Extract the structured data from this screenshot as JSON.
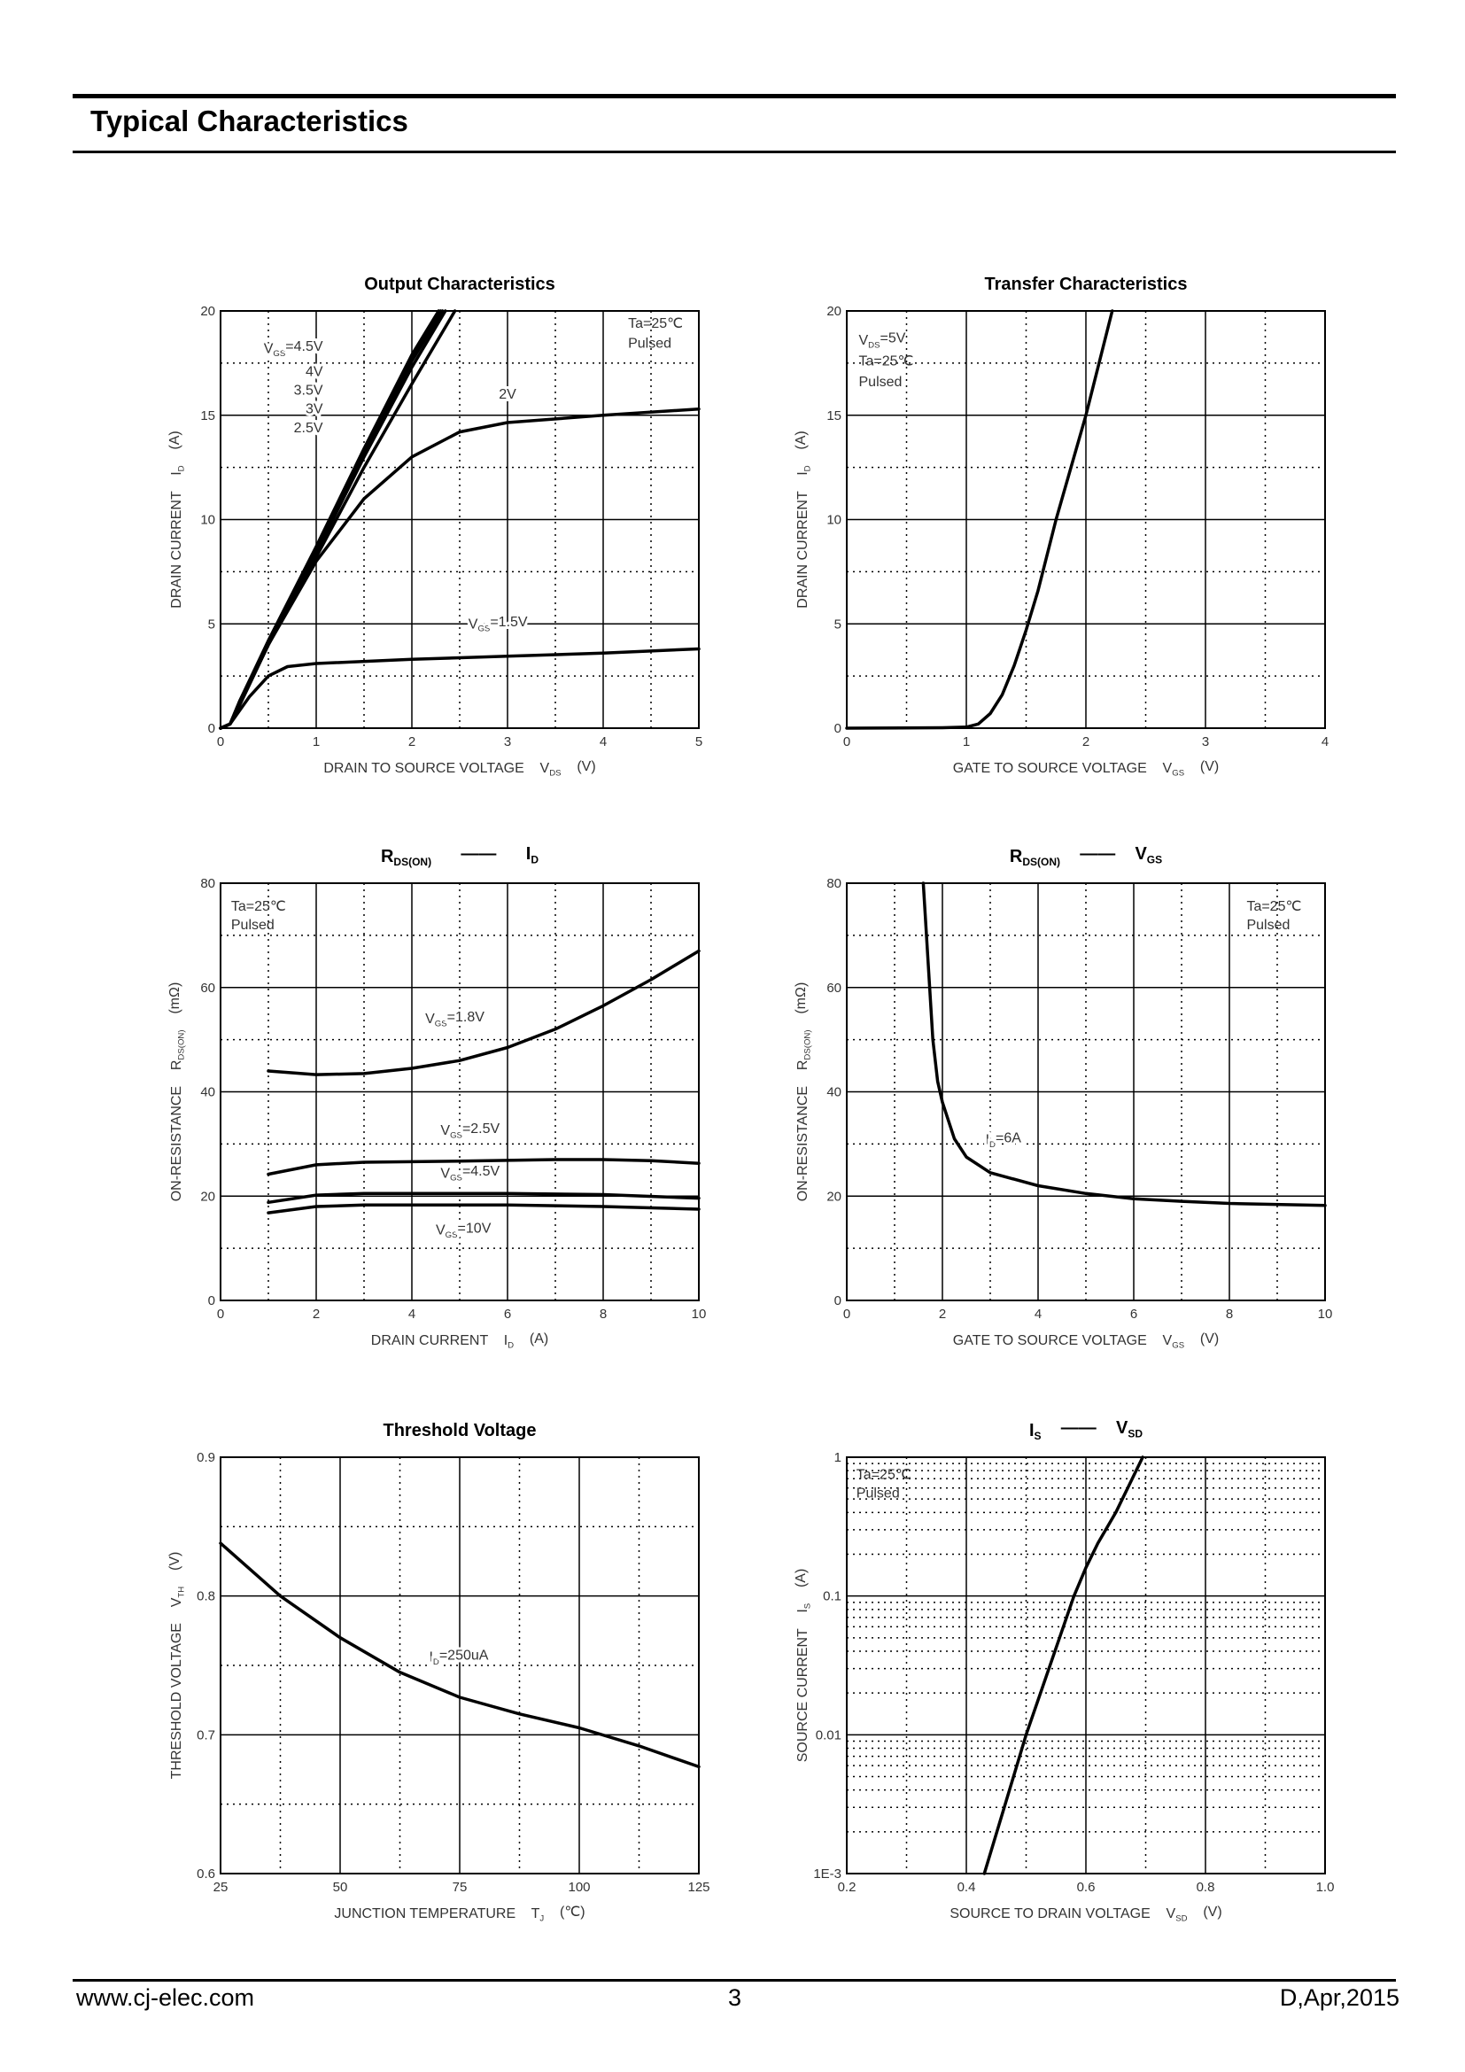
{
  "header": {
    "title": "Typical Characteristics"
  },
  "footer": {
    "website": "www.cj-elec.com",
    "page": "3",
    "revision": "D,Apr,2015"
  },
  "chart_data": [
    {
      "type": "line",
      "title": [
        {
          "t": "Output Characteristics"
        }
      ],
      "xlabel": [
        {
          "t": "DRAIN TO SOURCE VOLTAGE    V",
          "sub": "DS"
        },
        {
          "t": "    (V)"
        }
      ],
      "ylabel": [
        {
          "t": "DRAIN CURRENT    I",
          "sub": "D"
        },
        {
          "t": "    (A)"
        }
      ],
      "xlim": [
        0,
        5
      ],
      "ylim": [
        0,
        20
      ],
      "ylog": false,
      "xticks": [
        0,
        1,
        2,
        3,
        4,
        5
      ],
      "xtick_labels": [
        "0",
        "1",
        "2",
        "3",
        "4",
        "5"
      ],
      "xminor": [
        0.5,
        1.5,
        2.5,
        3.5,
        4.5
      ],
      "yticks": [
        0,
        5,
        10,
        15,
        20
      ],
      "ytick_labels": [
        "0",
        "5",
        "10",
        "15",
        "20"
      ],
      "yminor": [
        2.5,
        7.5,
        12.5,
        17.5
      ],
      "grid": true,
      "notes": [
        "Ta=25℃",
        "Pulsed"
      ],
      "annotations": [
        [
          {
            "t": "V",
            "sub": "GS"
          },
          {
            "t": "=4.5V"
          }
        ],
        [
          {
            "t": "4V"
          }
        ],
        [
          {
            "t": "3.5V"
          }
        ],
        [
          {
            "t": "3V"
          }
        ],
        [
          {
            "t": "2.5V"
          }
        ],
        [
          {
            "t": "2V"
          }
        ],
        [
          {
            "t": "V",
            "sub": "GS"
          },
          {
            "t": "=1.5V"
          }
        ]
      ],
      "series": [
        {
          "label": "VGS=4.5V",
          "x": [
            0,
            0.1,
            0.2,
            0.5,
            1,
            1.5,
            2,
            2.28
          ],
          "y": [
            0,
            0.2,
            1.3,
            4.2,
            8.7,
            13.4,
            17.9,
            20
          ]
        },
        {
          "label": "VGS=4V",
          "x": [
            0,
            0.1,
            0.2,
            0.5,
            1,
            1.5,
            2,
            2.3
          ],
          "y": [
            0,
            0.2,
            1.3,
            4.1,
            8.6,
            13.3,
            17.8,
            20
          ]
        },
        {
          "label": "VGS=3.5V",
          "x": [
            0,
            0.1,
            0.2,
            0.5,
            1,
            1.5,
            2,
            2.32
          ],
          "y": [
            0,
            0.2,
            1.2,
            4.1,
            8.5,
            13.2,
            17.6,
            20
          ]
        },
        {
          "label": "VGS=3V",
          "x": [
            0,
            0.1,
            0.2,
            0.5,
            1,
            1.5,
            2,
            2.35
          ],
          "y": [
            0,
            0.2,
            1.2,
            4.0,
            8.4,
            13.0,
            17.3,
            20
          ]
        },
        {
          "label": "VGS=2.5V",
          "x": [
            0,
            0.1,
            0.2,
            0.5,
            1,
            1.5,
            2,
            2.45
          ],
          "y": [
            0,
            0.2,
            1.2,
            4.0,
            8.2,
            12.5,
            16.5,
            20
          ]
        },
        {
          "label": "VGS=2V",
          "x": [
            0,
            0.1,
            0.2,
            0.5,
            1,
            1.5,
            2,
            2.5,
            3,
            4,
            5
          ],
          "y": [
            0,
            0.2,
            1.1,
            4.0,
            8.0,
            11.0,
            13.0,
            14.2,
            14.65,
            15.0,
            15.3
          ]
        },
        {
          "label": "VGS=1.5V",
          "x": [
            0,
            0.1,
            0.3,
            0.5,
            0.7,
            1,
            2,
            3,
            4,
            5
          ],
          "y": [
            0,
            0.2,
            1.5,
            2.5,
            2.95,
            3.1,
            3.3,
            3.45,
            3.6,
            3.8
          ]
        }
      ]
    },
    {
      "type": "line",
      "title": [
        {
          "t": "Transfer Characteristics"
        }
      ],
      "xlabel": [
        {
          "t": "GATE TO SOURCE VOLTAGE    V",
          "sub": "GS"
        },
        {
          "t": "    (V)"
        }
      ],
      "ylabel": [
        {
          "t": "DRAIN CURRENT    I",
          "sub": "D"
        },
        {
          "t": "    (A)"
        }
      ],
      "xlim": [
        0,
        4
      ],
      "ylim": [
        0,
        20
      ],
      "ylog": false,
      "xticks": [
        0,
        1,
        2,
        3,
        4
      ],
      "xtick_labels": [
        "0",
        "1",
        "2",
        "3",
        "4"
      ],
      "xminor": [
        0.5,
        1.5,
        2.5,
        3.5
      ],
      "yticks": [
        0,
        5,
        10,
        15,
        20
      ],
      "ytick_labels": [
        "0",
        "5",
        "10",
        "15",
        "20"
      ],
      "yminor": [
        2.5,
        7.5,
        12.5,
        17.5
      ],
      "grid": true,
      "notes": [
        [
          {
            "t": "V",
            "sub": "DS"
          },
          {
            "t": "=5V"
          }
        ],
        "Ta=25℃",
        "Pulsed"
      ],
      "annotations": [],
      "series": [
        {
          "label": "VDS=5V",
          "x": [
            0,
            0.8,
            1.0,
            1.1,
            1.2,
            1.3,
            1.4,
            1.5,
            1.6,
            1.75,
            2.0,
            2.22
          ],
          "y": [
            0,
            0.02,
            0.05,
            0.2,
            0.7,
            1.6,
            3.0,
            4.7,
            6.6,
            10.0,
            15.0,
            20.0
          ]
        }
      ]
    },
    {
      "type": "line",
      "title": [
        {
          "t": "R",
          "sub": "DS(ON)"
        },
        {
          "t": "      ——      "
        },
        {
          "t": "I",
          "sub": "D"
        }
      ],
      "xlabel": [
        {
          "t": "DRAIN CURRENT    I",
          "sub": "D"
        },
        {
          "t": "    (A)"
        }
      ],
      "ylabel": [
        {
          "t": "ON-RESISTANCE    R",
          "sub": "DS(ON)"
        },
        {
          "t": "    (mΩ)"
        }
      ],
      "xlim": [
        0,
        10
      ],
      "ylim": [
        0,
        80
      ],
      "ylog": false,
      "xticks": [
        0,
        2,
        4,
        6,
        8,
        10
      ],
      "xtick_labels": [
        "0",
        "2",
        "4",
        "6",
        "8",
        "10"
      ],
      "xminor": [
        1,
        3,
        5,
        7,
        9
      ],
      "yticks": [
        0,
        20,
        40,
        60,
        80
      ],
      "ytick_labels": [
        "0",
        "20",
        "40",
        "60",
        "80"
      ],
      "yminor": [
        10,
        30,
        50,
        70
      ],
      "grid": true,
      "notes": [
        "Ta=25℃",
        "Pulsed"
      ],
      "annotations": [
        [
          {
            "t": "V",
            "sub": "GS"
          },
          {
            "t": "=1.8V"
          }
        ],
        [
          {
            "t": "V",
            "sub": "GS"
          },
          {
            "t": "=2.5V"
          }
        ],
        [
          {
            "t": "V",
            "sub": "GS"
          },
          {
            "t": "=4.5V"
          }
        ],
        [
          {
            "t": "V",
            "sub": "GS"
          },
          {
            "t": "=10V"
          }
        ]
      ],
      "series": [
        {
          "label": "VGS=1.8V",
          "x": [
            1,
            2,
            3,
            4,
            5,
            6,
            7,
            8,
            9,
            10
          ],
          "y": [
            44,
            43.3,
            43.5,
            44.5,
            46,
            48.5,
            52,
            56.5,
            61.5,
            67
          ]
        },
        {
          "label": "VGS=2.5V",
          "x": [
            1,
            2,
            3,
            5,
            7,
            8,
            9,
            10
          ],
          "y": [
            24.2,
            26,
            26.5,
            26.7,
            27,
            27,
            26.8,
            26.3
          ]
        },
        {
          "label": "VGS=4.5V",
          "x": [
            1,
            2,
            3,
            6,
            8,
            10
          ],
          "y": [
            18.8,
            20.2,
            20.5,
            20.5,
            20.3,
            19.6
          ]
        },
        {
          "label": "VGS=10V",
          "x": [
            1,
            2,
            3,
            6,
            8,
            10
          ],
          "y": [
            16.8,
            18,
            18.3,
            18.3,
            18,
            17.5
          ]
        }
      ]
    },
    {
      "type": "line",
      "title": [
        {
          "t": "R",
          "sub": "DS(ON)"
        },
        {
          "t": "    ——    "
        },
        {
          "t": "V",
          "sub": "GS"
        }
      ],
      "xlabel": [
        {
          "t": "GATE TO SOURCE VOLTAGE    V",
          "sub": "GS"
        },
        {
          "t": "    (V)"
        }
      ],
      "ylabel": [
        {
          "t": "ON-RESISTANCE    R",
          "sub": "DS(ON)"
        },
        {
          "t": "    (mΩ)"
        }
      ],
      "xlim": [
        0,
        10
      ],
      "ylim": [
        0,
        80
      ],
      "ylog": false,
      "xticks": [
        0,
        2,
        4,
        6,
        8,
        10
      ],
      "xtick_labels": [
        "0",
        "2",
        "4",
        "6",
        "8",
        "10"
      ],
      "xminor": [
        1,
        3,
        5,
        7,
        9
      ],
      "yticks": [
        0,
        20,
        40,
        60,
        80
      ],
      "ytick_labels": [
        "0",
        "20",
        "40",
        "60",
        "80"
      ],
      "yminor": [
        10,
        30,
        50,
        70
      ],
      "grid": true,
      "notes": [
        "Ta=25℃",
        "Pulsed"
      ],
      "annotations": [
        [
          {
            "t": "I",
            "sub": "D"
          },
          {
            "t": "=6A"
          }
        ]
      ],
      "series": [
        {
          "label": "ID=6A",
          "x": [
            1.6,
            1.7,
            1.8,
            1.9,
            2.0,
            2.25,
            2.5,
            3,
            4,
            5,
            6,
            7,
            8,
            10
          ],
          "y": [
            80,
            65,
            50,
            42,
            38,
            31,
            27.5,
            24.5,
            22,
            20.5,
            19.5,
            19,
            18.6,
            18.2
          ]
        }
      ]
    },
    {
      "type": "line",
      "title": [
        {
          "t": "Threshold Voltage"
        }
      ],
      "xlabel": [
        {
          "t": "JUNCTION TEMPERATURE    T",
          "sub": "J"
        },
        {
          "t": "    (℃)"
        }
      ],
      "ylabel": [
        {
          "t": "THRESHOLD VOLTAGE    V",
          "sub": "TH"
        },
        {
          "t": "    (V)"
        }
      ],
      "xlim": [
        25,
        125
      ],
      "ylim": [
        0.6,
        0.9
      ],
      "ylog": false,
      "xticks": [
        25,
        50,
        75,
        100,
        125
      ],
      "xtick_labels": [
        "25",
        "50",
        "75",
        "100",
        "125"
      ],
      "xminor": [
        37.5,
        62.5,
        87.5,
        112.5
      ],
      "yticks": [
        0.6,
        0.7,
        0.8,
        0.9
      ],
      "ytick_labels": [
        "0.6",
        "0.7",
        "0.8",
        "0.9"
      ],
      "yminor": [
        0.65,
        0.75,
        0.85
      ],
      "grid": true,
      "notes": [],
      "annotations": [
        [
          {
            "t": "I",
            "sub": "D"
          },
          {
            "t": "=250uA"
          }
        ]
      ],
      "series": [
        {
          "label": "ID=250uA",
          "x": [
            25,
            37.5,
            50,
            62.5,
            75,
            87.5,
            100,
            112.5,
            125
          ],
          "y": [
            0.838,
            0.8,
            0.77,
            0.745,
            0.727,
            0.715,
            0.705,
            0.692,
            0.677
          ]
        }
      ]
    },
    {
      "type": "line",
      "title": [
        {
          "t": "I",
          "sub": "S"
        },
        {
          "t": "    ——    "
        },
        {
          "t": "V",
          "sub": "SD"
        }
      ],
      "xlabel": [
        {
          "t": "SOURCE TO DRAIN VOLTAGE    V",
          "sub": "SD"
        },
        {
          "t": "    (V)"
        }
      ],
      "ylabel": [
        {
          "t": "SOURCE CURRENT    I",
          "sub": "S"
        },
        {
          "t": "    (A)"
        }
      ],
      "xlim": [
        0.2,
        1.0
      ],
      "ylim": [
        0.001,
        1
      ],
      "ylog": true,
      "xticks": [
        0.2,
        0.4,
        0.6,
        0.8,
        1.0
      ],
      "xtick_labels": [
        "0.2",
        "0.4",
        "0.6",
        "0.8",
        "1.0"
      ],
      "xminor": [
        0.3,
        0.5,
        0.7,
        0.9
      ],
      "yticks": [
        0.001,
        0.01,
        0.1,
        1
      ],
      "ytick_labels": [
        "1E-3",
        "0.01",
        "0.1",
        "1"
      ],
      "yminor": [
        0.002,
        0.003,
        0.004,
        0.005,
        0.006,
        0.007,
        0.008,
        0.009,
        0.02,
        0.03,
        0.04,
        0.05,
        0.06,
        0.07,
        0.08,
        0.09,
        0.2,
        0.3,
        0.4,
        0.5,
        0.6,
        0.7,
        0.8,
        0.9
      ],
      "grid": true,
      "notes": [
        "Ta=25℃",
        "Pulsed"
      ],
      "annotations": [],
      "series": [
        {
          "label": "Ta=25℃",
          "x": [
            0.43,
            0.5,
            0.58,
            0.6,
            0.62,
            0.65,
            0.695
          ],
          "y": [
            0.001,
            0.01,
            0.1,
            0.16,
            0.24,
            0.4,
            1
          ]
        }
      ]
    }
  ]
}
